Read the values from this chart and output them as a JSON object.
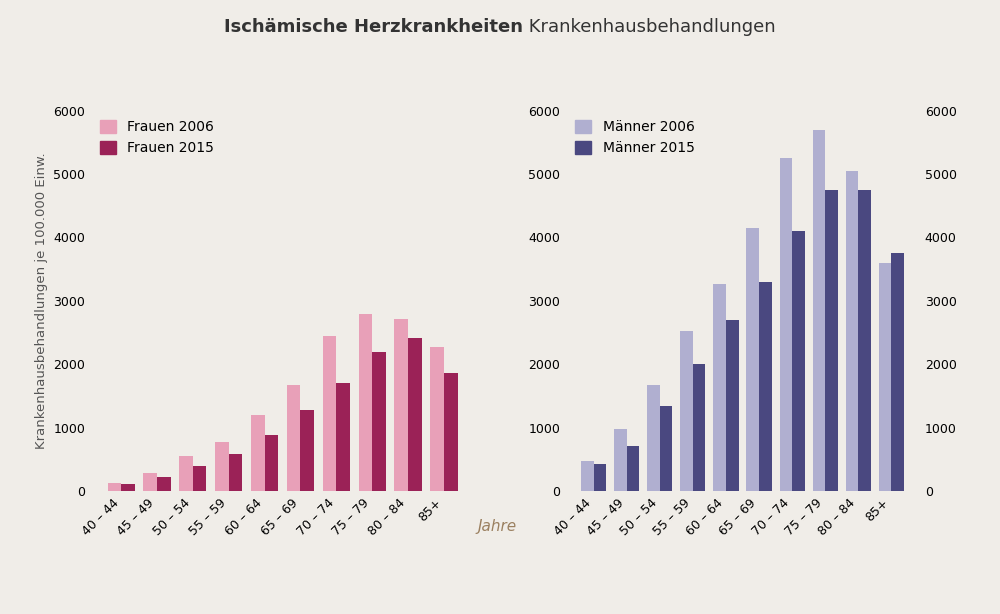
{
  "title_bold": "Ischämische Herzkrankheiten",
  "title_normal": " Krankenhausbehandlungen",
  "ylabel": "Krankenhausbehandlungen je 100.000 Einw.",
  "xlabel": "Jahre",
  "categories": [
    "40 – 44",
    "45 – 49",
    "50 – 54",
    "55 – 59",
    "60 – 64",
    "65 – 69",
    "70 – 74",
    "75 – 79",
    "80 – 84",
    "85+"
  ],
  "frauen_2006": [
    130,
    290,
    560,
    780,
    1200,
    1680,
    2450,
    2800,
    2720,
    2280
  ],
  "frauen_2015": [
    120,
    220,
    390,
    590,
    890,
    1280,
    1700,
    2200,
    2420,
    1870
  ],
  "maenner_2006": [
    480,
    980,
    1680,
    2530,
    3260,
    4150,
    5250,
    5700,
    5050,
    3600
  ],
  "maenner_2015": [
    430,
    720,
    1350,
    2000,
    2700,
    3300,
    4100,
    4750,
    4750,
    3750
  ],
  "color_frauen_2006": "#e8a0b8",
  "color_frauen_2015": "#9b2257",
  "color_maenner_2006": "#b0afd0",
  "color_maenner_2015": "#4a4880",
  "ylim": [
    0,
    6000
  ],
  "yticks": [
    0,
    1000,
    2000,
    3000,
    4000,
    5000,
    6000
  ],
  "bar_width": 0.38,
  "background_color": "#f0ede8",
  "title_fontsize": 13,
  "axis_label_fontsize": 9.5,
  "tick_fontsize": 9,
  "legend_fontsize": 10,
  "xlabel_color": "#9b8060",
  "xlabel_fontsize": 11,
  "text_color": "#333333",
  "ylabel_color": "#555555"
}
